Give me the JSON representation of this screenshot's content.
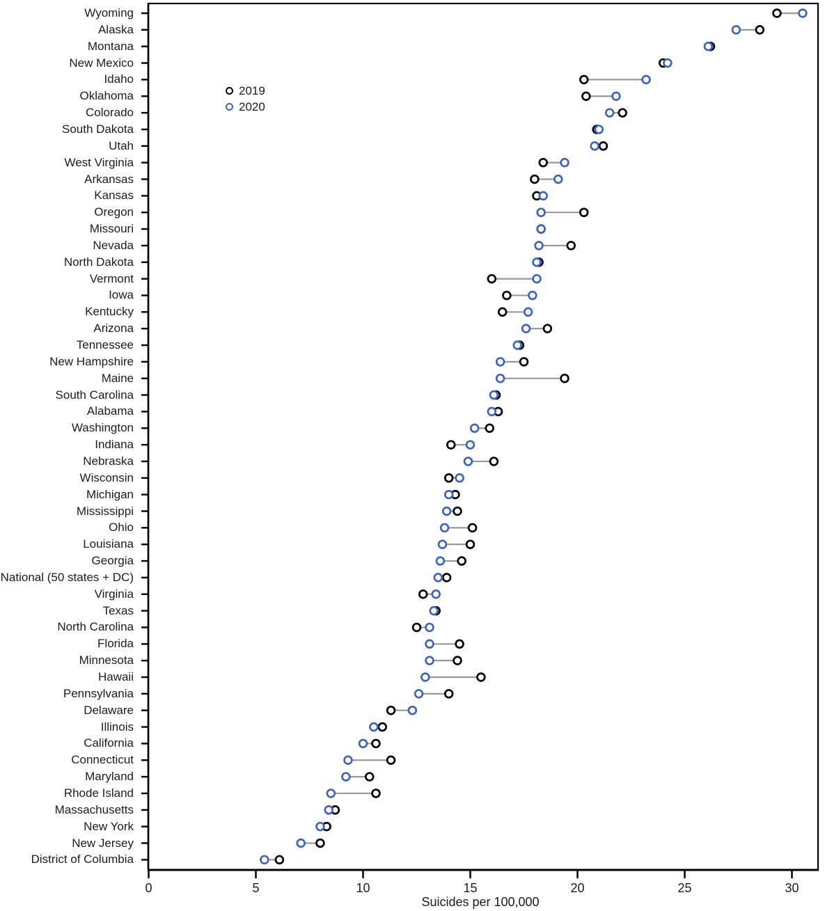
{
  "chart_data": {
    "type": "scatter",
    "subtype": "dumbbell-dot-plot",
    "title": "",
    "xlabel": "Suicides per 100,000",
    "x_ticks": [
      0,
      5,
      10,
      15,
      20,
      25,
      30
    ],
    "xlim": [
      0,
      31.2
    ],
    "grid": false,
    "legend_position": "inside-top-left",
    "legend": [
      {
        "label": "2019",
        "color": "#000000"
      },
      {
        "label": "2020",
        "color": "#3f63c1"
      }
    ],
    "categories": [
      "Wyoming",
      "Alaska",
      "Montana",
      "New Mexico",
      "Idaho",
      "Oklahoma",
      "Colorado",
      "South Dakota",
      "Utah",
      "West Virginia",
      "Arkansas",
      "Kansas",
      "Oregon",
      "Missouri",
      "Nevada",
      "North Dakota",
      "Vermont",
      "Iowa",
      "Kentucky",
      "Arizona",
      "Tennessee",
      "New Hampshire",
      "Maine",
      "South Carolina",
      "Alabama",
      "Washington",
      "Indiana",
      "Nebraska",
      "Wisconsin",
      "Michigan",
      "Mississippi",
      "Ohio",
      "Louisiana",
      "Georgia",
      "National (50 states + DC)",
      "Virginia",
      "Texas",
      "North Carolina",
      "Florida",
      "Minnesota",
      "Hawaii",
      "Pennsylvania",
      "Delaware",
      "Illinois",
      "California",
      "Connecticut",
      "Maryland",
      "Rhode Island",
      "Massachusetts",
      "New York",
      "New Jersey",
      "District of Columbia"
    ],
    "series": [
      {
        "name": "2019",
        "color": "#000000",
        "values": [
          29.3,
          28.5,
          26.2,
          24.0,
          20.3,
          20.4,
          22.1,
          20.9,
          21.2,
          18.4,
          18.0,
          18.1,
          20.3,
          18.3,
          19.7,
          18.2,
          16.0,
          16.7,
          16.5,
          18.6,
          17.3,
          17.5,
          19.4,
          16.2,
          16.3,
          15.9,
          14.1,
          16.1,
          14.0,
          14.3,
          14.4,
          15.1,
          15.0,
          14.6,
          13.9,
          12.8,
          13.4,
          12.5,
          14.5,
          14.4,
          15.5,
          14.0,
          11.3,
          10.9,
          10.6,
          11.3,
          10.3,
          10.6,
          8.7,
          8.3,
          8.0,
          6.1
        ]
      },
      {
        "name": "2020",
        "color": "#3f63c1",
        "values": [
          30.5,
          27.4,
          26.1,
          24.2,
          23.2,
          21.8,
          21.5,
          21.0,
          20.8,
          19.4,
          19.1,
          18.4,
          18.3,
          18.3,
          18.2,
          18.1,
          18.1,
          17.9,
          17.7,
          17.6,
          17.2,
          16.4,
          16.4,
          16.1,
          16.0,
          15.2,
          15.0,
          14.9,
          14.5,
          14.0,
          13.9,
          13.8,
          13.7,
          13.6,
          13.5,
          13.4,
          13.3,
          13.1,
          13.1,
          13.1,
          12.9,
          12.6,
          12.3,
          10.5,
          10.0,
          9.3,
          9.2,
          8.5,
          8.4,
          8.0,
          7.1,
          5.4
        ]
      }
    ],
    "connector_color": "#999999",
    "frame_color": "#000000"
  }
}
